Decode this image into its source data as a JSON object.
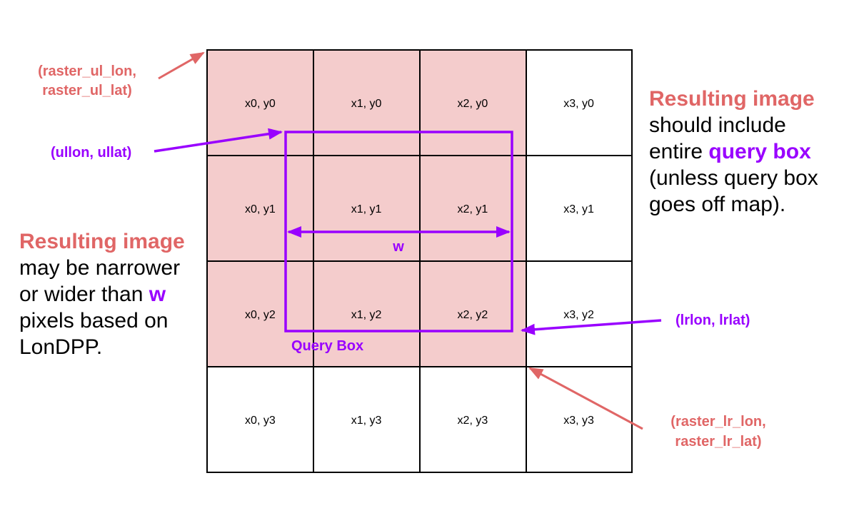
{
  "colors": {
    "highlight_fill": "#f4cccc",
    "red": "#e06666",
    "purple": "#9900ff",
    "grid": "#000000"
  },
  "grid": {
    "cells": [
      [
        "x0, y0",
        "x1, y0",
        "x2, y0",
        "x3, y0"
      ],
      [
        "x0, y1",
        "x1, y1",
        "x2, y1",
        "x3, y1"
      ],
      [
        "x0, y2",
        "x1, y2",
        "x2, y2",
        "x3, y2"
      ],
      [
        "x0, y3",
        "x1, y3",
        "x2, y3",
        "x3, y3"
      ]
    ]
  },
  "labels": {
    "raster_ul_line1": "(raster_ul_lon,",
    "raster_ul_line2": "raster_ul_lat)",
    "ullon_ullat": "(ullon, ullat)",
    "lrlon_lrlat": "(lrlon, lrlat)",
    "raster_lr_line1": "(raster_lr_lon,",
    "raster_lr_line2": "raster_lr_lat)",
    "w": "w",
    "query_box": "Query Box"
  },
  "right_note": {
    "heading": "Resulting image",
    "line1": "should include",
    "line2_prefix": "entire ",
    "line2_highlight": "query box",
    "line3": "(unless query box",
    "line4": "goes off map)."
  },
  "left_note": {
    "heading": "Resulting image",
    "line1": "may be narrower",
    "line2_prefix": "or wider than ",
    "line2_highlight": "w",
    "line3": "pixels based on",
    "line4": "LonDPP."
  }
}
